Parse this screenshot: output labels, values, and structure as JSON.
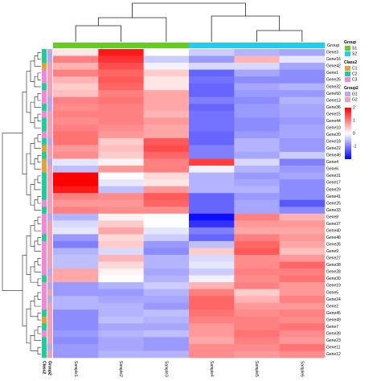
{
  "chart_data": {
    "type": "heatmap",
    "columns": [
      "Sample1",
      "Sample2",
      "Sample3",
      "Sample4",
      "Sample5",
      "Sample6"
    ],
    "column_group": [
      "S1",
      "S1",
      "S1",
      "S2",
      "S2",
      "S2"
    ],
    "rows": [
      "Gene3",
      "Gene16",
      "Gene42",
      "Gene1",
      "Gene26",
      "Gene32",
      "Gene50",
      "Gene13",
      "Gene36",
      "Gene15",
      "Gene44",
      "Gene10",
      "Gene20",
      "Gene18",
      "Gene22",
      "Gene46",
      "Gene4",
      "Gene6",
      "Gene31",
      "Gene17",
      "Gene29",
      "Gene41",
      "Gene25",
      "Gene33",
      "Gene8",
      "Gene37",
      "Gene40",
      "Gene48",
      "Gene35",
      "Gene9",
      "Gene27",
      "Gene38",
      "Gene28",
      "Gene30",
      "Gene19",
      "Gene5",
      "Gene24",
      "Gene2",
      "Gene45",
      "Gene49",
      "Gene7",
      "Gene39",
      "Gene23",
      "Gene11",
      "Gene12"
    ],
    "row_class": [
      "C2",
      "C2",
      "C1",
      "C3",
      "C3",
      "C2",
      "C3",
      "C3",
      "C2",
      "C3",
      "C2",
      "C2",
      "C3",
      "C2",
      "C1",
      "C2",
      "C1",
      "C1",
      "C2",
      "C2",
      "C2",
      "C2",
      "C3",
      "C2",
      "C3",
      "C3",
      "C3",
      "C2",
      "C3",
      "C3",
      "C3",
      "C3",
      "C3",
      "C2",
      "C3",
      "C3",
      "C3",
      "C3",
      "C2",
      "C1",
      "C2",
      "C3",
      "C2",
      "C2",
      "C2"
    ],
    "row_group": [
      "G1",
      "G1",
      "G2",
      "G2",
      "G2",
      "G2",
      "G2",
      "G1",
      "G1",
      "G2",
      "G2",
      "G2",
      "G2",
      "G1",
      "G2",
      "G2",
      "G1",
      "G2",
      "G2",
      "G2",
      "G2",
      "G2",
      "G2",
      "G2",
      "G1",
      "G2",
      "G2",
      "G2",
      "G2",
      "G2",
      "G2",
      "G2",
      "G1",
      "G2",
      "G1",
      "G2",
      "G1",
      "G2",
      "G2",
      "G2",
      "G2",
      "G2",
      "G2",
      "G1",
      "G2"
    ],
    "values": [
      [
        0.2,
        1.8,
        0.0,
        -0.4,
        -0.6,
        -0.7
      ],
      [
        1.0,
        1.6,
        -0.4,
        -0.8,
        0.6,
        -0.2
      ],
      [
        0.6,
        1.4,
        -0.1,
        -0.3,
        -0.3,
        -0.7
      ],
      [
        1.0,
        1.2,
        0.4,
        -1.2,
        -0.7,
        -0.9
      ],
      [
        0.6,
        1.3,
        0.2,
        -1.1,
        -0.9,
        -0.9
      ],
      [
        0.4,
        1.2,
        0.2,
        -1.2,
        -0.7,
        -0.6
      ],
      [
        0.5,
        1.0,
        0.7,
        -1.2,
        -0.8,
        -0.8
      ],
      [
        1.0,
        1.1,
        0.7,
        -1.0,
        -0.9,
        -0.6
      ],
      [
        0.9,
        1.0,
        0.7,
        -1.2,
        -0.8,
        -0.7
      ],
      [
        1.0,
        1.0,
        0.6,
        -1.1,
        -0.8,
        -0.7
      ],
      [
        0.9,
        1.0,
        0.8,
        -1.1,
        -0.9,
        -0.8
      ],
      [
        1.0,
        0.9,
        0.7,
        -1.1,
        -0.9,
        -0.7
      ],
      [
        1.1,
        0.8,
        0.7,
        -1.2,
        -0.8,
        -0.7
      ],
      [
        1.1,
        0.4,
        1.3,
        -1.2,
        -0.6,
        -0.8
      ],
      [
        0.8,
        0.5,
        1.4,
        -1.0,
        -0.6,
        -0.8
      ],
      [
        0.9,
        0.4,
        1.2,
        -1.0,
        -0.7,
        -0.4
      ],
      [
        -0.2,
        0.1,
        1.0,
        1.5,
        -0.3,
        -1.0
      ],
      [
        -0.5,
        0.8,
        1.0,
        -0.1,
        -0.6,
        -0.8
      ],
      [
        2.0,
        0.0,
        0.3,
        -0.6,
        -0.8,
        -0.7
      ],
      [
        2.0,
        -0.2,
        0.2,
        -0.6,
        -0.7,
        -0.9
      ],
      [
        1.8,
        -0.5,
        0.8,
        -0.6,
        -0.6,
        -0.9
      ],
      [
        1.0,
        0.9,
        1.3,
        -1.2,
        -0.8,
        -0.9
      ],
      [
        0.8,
        0.8,
        1.2,
        -1.2,
        -0.7,
        -1.3
      ],
      [
        1.0,
        0.9,
        0.9,
        -1.2,
        -0.7,
        -0.9
      ],
      [
        -0.6,
        0.1,
        0.0,
        -1.9,
        1.0,
        0.6
      ],
      [
        -0.3,
        0.4,
        0.0,
        -1.6,
        0.8,
        0.8
      ],
      [
        -0.2,
        0.7,
        -0.2,
        -1.0,
        0.7,
        0.7
      ],
      [
        -0.8,
        0.3,
        -0.4,
        -1.2,
        1.0,
        0.8
      ],
      [
        -1.0,
        0.4,
        -0.8,
        -0.5,
        1.2,
        0.7
      ],
      [
        -0.6,
        -0.3,
        -0.9,
        0.4,
        1.3,
        0.5
      ],
      [
        -0.5,
        0.6,
        -0.6,
        -0.3,
        0.9,
        0.8
      ],
      [
        -0.5,
        0.3,
        -0.6,
        -0.2,
        0.9,
        1.2
      ],
      [
        0.7,
        0.1,
        -0.7,
        -0.4,
        1.0,
        1.0
      ],
      [
        0.7,
        0.0,
        -0.6,
        -0.1,
        0.9,
        1.1
      ],
      [
        -0.8,
        -0.6,
        -0.4,
        0.6,
        1.0,
        0.8
      ],
      [
        -0.8,
        -0.8,
        -0.6,
        1.0,
        0.4,
        0.8
      ],
      [
        -0.6,
        -0.7,
        -0.7,
        1.2,
        0.6,
        1.0
      ],
      [
        -0.6,
        -0.6,
        -0.8,
        1.2,
        0.8,
        0.8
      ],
      [
        -0.9,
        -0.6,
        -0.5,
        1.1,
        0.9,
        1.0
      ],
      [
        -0.9,
        -0.5,
        -0.6,
        1.0,
        1.0,
        0.9
      ],
      [
        -0.9,
        -0.7,
        -0.7,
        0.8,
        1.0,
        1.1
      ],
      [
        -0.8,
        -0.6,
        -0.5,
        0.8,
        1.1,
        0.9
      ],
      [
        -0.9,
        -0.7,
        -0.8,
        0.7,
        1.0,
        0.8
      ],
      [
        -0.8,
        -0.7,
        -0.8,
        0.9,
        0.9,
        1.1
      ],
      [
        -0.8,
        -0.6,
        -0.6,
        0.9,
        0.8,
        0.9
      ]
    ],
    "color_range": [
      -2,
      2
    ],
    "color_low": "#0000ff",
    "color_mid": "#ffffff",
    "color_high": "#ff0000",
    "annotation_labels": {
      "top": "Group",
      "left": [
        "Group2",
        "Class2"
      ]
    },
    "legend": {
      "group": {
        "title": "Group",
        "items": [
          "S1",
          "S2"
        ],
        "colors": [
          "#66cc22",
          "#22ccee"
        ]
      },
      "class2": {
        "title": "Class2",
        "items": [
          "C1",
          "C2",
          "C3"
        ],
        "colors": [
          "#e0a23c",
          "#22cc99",
          "#f08ad8"
        ]
      },
      "group2": {
        "title": "Group2",
        "items": [
          "G1",
          "G2"
        ],
        "colors": [
          "#b8a8f0",
          "#f4a0b8"
        ]
      },
      "colorbar": {
        "ticks": [
          2,
          1,
          0,
          -1
        ]
      }
    }
  }
}
